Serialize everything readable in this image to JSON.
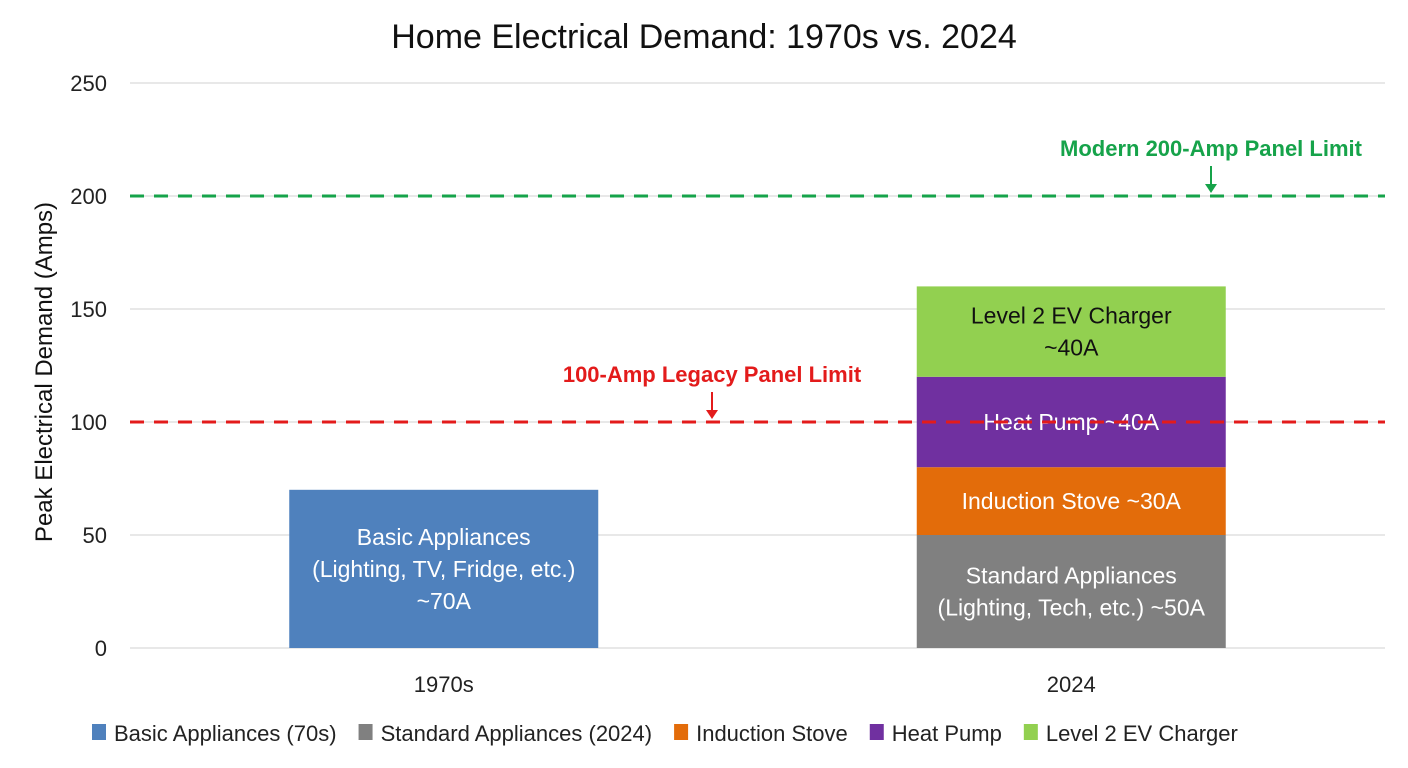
{
  "chart_data": {
    "type": "bar",
    "stacked": true,
    "title": "Home Electrical Demand: 1970s vs. 2024",
    "xlabel": "",
    "ylabel": "Peak Electrical Demand (Amps)",
    "ylim": [
      0,
      250
    ],
    "yticks": [
      0,
      50,
      100,
      150,
      200,
      250
    ],
    "grid": true,
    "legend_position": "bottom",
    "categories": [
      "1970s",
      "2024"
    ],
    "series": [
      {
        "name": "Basic Appliances (70s)",
        "color": "#4f81bd",
        "values": [
          70,
          0
        ],
        "label": [
          "Basic Appliances",
          "(Lighting, TV, Fridge, etc.)",
          "~70A"
        ],
        "label_color": "#ffffff"
      },
      {
        "name": "Standard Appliances (2024)",
        "color": "#808080",
        "values": [
          0,
          50
        ],
        "label": [
          "Standard Appliances",
          "(Lighting, Tech, etc.) ~50A"
        ],
        "label_color": "#ffffff"
      },
      {
        "name": "Induction Stove",
        "color": "#e36c0a",
        "values": [
          0,
          30
        ],
        "label": [
          "Induction Stove ~30A"
        ],
        "label_color": "#ffffff"
      },
      {
        "name": "Heat Pump",
        "color": "#7030a0",
        "values": [
          0,
          40
        ],
        "label": [
          "Heat Pump ~40A"
        ],
        "label_color": "#ffffff"
      },
      {
        "name": "Level 2 EV Charger",
        "color": "#92d050",
        "values": [
          0,
          40
        ],
        "label": [
          "Level 2 EV Charger",
          "~40A"
        ],
        "label_color": "#111111"
      }
    ],
    "reference_lines": [
      {
        "value": 100,
        "label": "100-Amp Legacy Panel Limit",
        "color": "#e31b1b",
        "style": "dashed"
      },
      {
        "value": 200,
        "label": "Modern 200-Amp Panel Limit",
        "color": "#16a34a",
        "style": "dashed"
      }
    ]
  }
}
